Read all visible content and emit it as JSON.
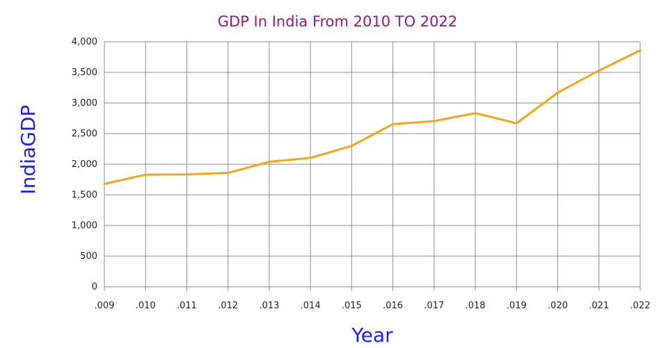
{
  "chart_data": {
    "type": "line",
    "title": "GDP In India From 2010 TO 2022",
    "xlabel": "Year",
    "ylabel": "IndiaGDP",
    "categories": [
      ".009",
      ".010",
      ".011",
      ".012",
      ".013",
      ".014",
      ".015",
      ".016",
      ".017",
      ".018",
      ".019",
      ".020",
      ".021",
      ".022"
    ],
    "yticks": [
      "0",
      "500",
      "1,000",
      "1,500",
      "2,000",
      "2,500",
      "3,000",
      "3,500",
      "4,000"
    ],
    "ylim": [
      0,
      4000
    ],
    "grid": true,
    "legend": "none",
    "series": [
      {
        "values": [
          1680,
          1830,
          1835,
          1860,
          2040,
          2105,
          2300,
          2655,
          2705,
          2835,
          2670,
          3170,
          3530,
          3860
        ]
      }
    ],
    "colors": {
      "line": "#f6a614",
      "title": "#8b1a8b",
      "axis_title": "#1f1fe0",
      "grid": "#8c8c8c"
    }
  }
}
